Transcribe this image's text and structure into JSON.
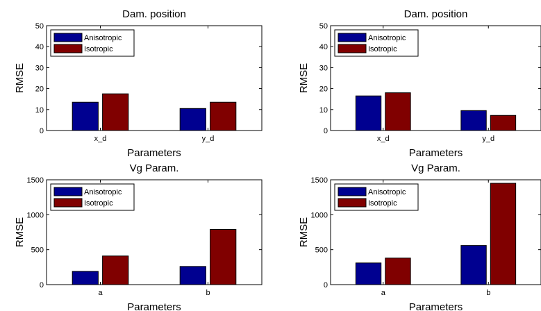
{
  "chart_data": [
    {
      "type": "bar",
      "title": "Dam. position",
      "xlabel": "Parameters",
      "ylabel": "RMSE",
      "categories": [
        "x_d",
        "y_d"
      ],
      "ylim": [
        0,
        50
      ],
      "yticks": [
        0,
        10,
        20,
        30,
        40,
        50
      ],
      "legend_position": "top-left",
      "series": [
        {
          "name": "Anisotropic",
          "color": "#000090",
          "values": [
            13.5,
            10.5
          ]
        },
        {
          "name": "Isotropic",
          "color": "#800000",
          "values": [
            17.5,
            13.5
          ]
        }
      ]
    },
    {
      "type": "bar",
      "title": "Dam. position",
      "xlabel": "Parameters",
      "ylabel": "RMSE",
      "categories": [
        "x_d",
        "y_d"
      ],
      "ylim": [
        0,
        50
      ],
      "yticks": [
        0,
        10,
        20,
        30,
        40,
        50
      ],
      "legend_position": "top-left",
      "series": [
        {
          "name": "Anisotropic",
          "color": "#000090",
          "values": [
            16.5,
            9.5
          ]
        },
        {
          "name": "Isotropic",
          "color": "#800000",
          "values": [
            18,
            7.2
          ]
        }
      ]
    },
    {
      "type": "bar",
      "title": "Vg Param.",
      "xlabel": "Parameters",
      "ylabel": "RMSE",
      "categories": [
        "a",
        "b"
      ],
      "ylim": [
        0,
        1500
      ],
      "yticks": [
        0,
        500,
        1000,
        1500
      ],
      "legend_position": "top-left",
      "series": [
        {
          "name": "Anisotropic",
          "color": "#000090",
          "values": [
            190,
            260
          ]
        },
        {
          "name": "Isotropic",
          "color": "#800000",
          "values": [
            410,
            790
          ]
        }
      ]
    },
    {
      "type": "bar",
      "title": "Vg Param.",
      "xlabel": "Parameters",
      "ylabel": "RMSE",
      "categories": [
        "a",
        "b"
      ],
      "ylim": [
        0,
        1500
      ],
      "yticks": [
        0,
        500,
        1000,
        1500
      ],
      "legend_position": "top-left",
      "series": [
        {
          "name": "Anisotropic",
          "color": "#000090",
          "values": [
            310,
            560
          ]
        },
        {
          "name": "Isotropic",
          "color": "#800000",
          "values": [
            380,
            1450
          ]
        }
      ]
    }
  ]
}
